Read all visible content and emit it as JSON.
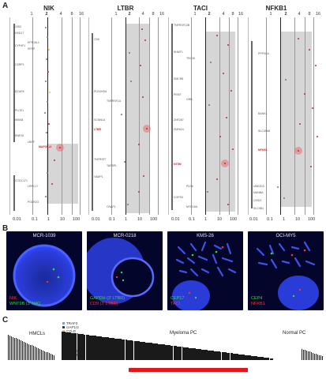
{
  "panels": {
    "a": "A",
    "b": "B",
    "c": "C"
  },
  "panel_a": {
    "columns": [
      {
        "title": "NIK",
        "top_ticks": [
          "1",
          "2",
          "4",
          "8",
          "16"
        ],
        "bottom_ticks": [
          "0.01",
          "0.1",
          "1",
          "10",
          "100"
        ],
        "genes": [
          "CIB3",
          "HSD17",
          "CYP4F1",
          "EPS15L1",
          "SFRP",
          "CSRP1",
          "DCAF8",
          "PLCE1",
          "IKBKB",
          "MAP3K14",
          "UBTF",
          "RNF20",
          "CCDC171",
          "LRRC17",
          "POLR2G"
        ],
        "highlight": "MAP3K14"
      },
      {
        "title": "LTBR",
        "top_ticks": [
          "1",
          "2",
          "4",
          "8",
          "16"
        ],
        "bottom_ticks": [
          "0.01",
          "0.1",
          "1",
          "10",
          "100"
        ],
        "genes": [
          "CD9",
          "PLEKHG6",
          "TNFRSF1A",
          "SCNN1A",
          "LTBR",
          "TAPBPL",
          "TNFRSF7",
          "VAMP1",
          "CNAP1"
        ],
        "highlight": "LTBR"
      },
      {
        "title": "TACI",
        "top_ticks": [
          "1",
          "2",
          "4",
          "8",
          "16"
        ],
        "bottom_ticks": [
          "0.01",
          "0.1",
          "1",
          "10",
          "100"
        ],
        "genes": [
          "TNFRSF13B",
          "TRC30",
          "SHMT1",
          "SMCR8",
          "PEMT",
          "GRB",
          "ZNF287",
          "ZNF624",
          "NT5M",
          "PLD6",
          "COPS3",
          "MYO15A"
        ],
        "highlight": "TNFRSF13B"
      },
      {
        "title": "NFKB1",
        "top_ticks": [
          "1",
          "2",
          "4",
          "8",
          "16"
        ],
        "bottom_ticks": [
          "0.01",
          "0.1",
          "1",
          "10",
          "100"
        ],
        "genes": [
          "PPP3CA",
          "BANK1",
          "SLC39A8",
          "NFKB1",
          "UBE2D3",
          "MANBA",
          "CISD2",
          "SLC9B1"
        ],
        "highlight": "NFKB1"
      }
    ]
  },
  "panel_b": {
    "images": [
      {
        "title": "MCR-1039",
        "probe1": "NIK",
        "probe1_color": "#ff3030",
        "probe2": "WNT9B (3' NIK)",
        "probe2_color": "#39d639"
      },
      {
        "title": "MCR-0218",
        "probe1": "GAPDH (3' LTBR)",
        "probe1_color": "#39d639",
        "probe2": "CD9 (3' LTBR)",
        "probe2_color": "#ff3030"
      },
      {
        "title": "KMS-26",
        "probe1": "CEP17",
        "probe1_color": "#39d639",
        "probe2": "TACI",
        "probe2_color": "#ff3030"
      },
      {
        "title": "OCI-MY5",
        "probe1": "CEP4",
        "probe1_color": "#39d639",
        "probe2": "NFKB1",
        "probe2_color": "#ff3030"
      }
    ]
  },
  "panel_c": {
    "legend": [
      {
        "label": "TRAF3",
        "color": "#6fa8dc"
      },
      {
        "label": "cIAP1/2",
        "color": "#1f3a93"
      },
      {
        "label": "CYLD",
        "color": "#f1c232"
      },
      {
        "label": "NIK",
        "color": "#b4d87a"
      },
      {
        "label": "LTBR",
        "color": "#2e7d32"
      },
      {
        "label": "CD40",
        "color": "#e06666"
      },
      {
        "label": "TACI",
        "color": "#cc0000"
      },
      {
        "label": "NFKB1",
        "color": "#cfe2f3"
      },
      {
        "label": "NFKB2",
        "color": "#6a3d9a"
      }
    ],
    "groups": [
      "HMCLs",
      "Myeloma PC",
      "Normal PC"
    ]
  },
  "colors": {
    "red": "#d0202a",
    "grey_box": "#d6d6d6",
    "micro_bg": "#03052a",
    "highlight_bar": "#e01818"
  }
}
